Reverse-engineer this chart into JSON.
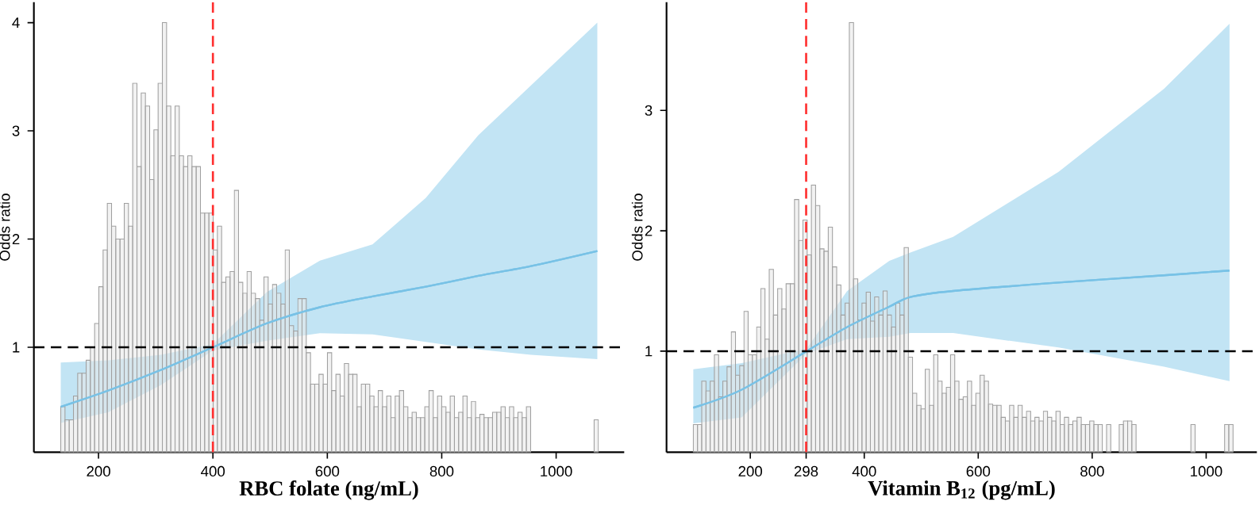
{
  "chart_data": [
    {
      "type": "histogram",
      "xlabel": "RBC folate (ng/mL)",
      "ylabel": "Odds ratio",
      "xlim": [
        87,
        1119
      ],
      "ylim": [
        0.03,
        4.19
      ],
      "xticks": [
        200,
        400,
        600,
        800,
        1000
      ],
      "yticks": [
        1,
        2,
        3,
        4
      ],
      "series": [
        {
          "type": "histogram",
          "color": "#a0a0a0",
          "bins": [
            134,
            141.4,
            148.8,
            156.2,
            163.6,
            171,
            178.4,
            185.8,
            193.2,
            200.6,
            208,
            215.4,
            222.8,
            230.2,
            237.6,
            245,
            252.4,
            259.8,
            267.2,
            274.6,
            282,
            289.4,
            296.8,
            304.2,
            311.6,
            319,
            326.4,
            333.8,
            341.2,
            348.6,
            356,
            363.4,
            370.8,
            378.2,
            385.6,
            393,
            400.4,
            407.8,
            415.2,
            422.6,
            430,
            437.4,
            444.8,
            452.2,
            459.6,
            467,
            474.4,
            481.8,
            489.2,
            496.6,
            504,
            511.4,
            518.8,
            526.2,
            533.6,
            541,
            548.4,
            555.8,
            563.2,
            570.6,
            578,
            585.4,
            592.8,
            600.2,
            607.6,
            615,
            622.4,
            629.8,
            637.2,
            644.6,
            652,
            659.4,
            666.8,
            674.2,
            681.6,
            689,
            696.4,
            703.8,
            711.2,
            718.6,
            726,
            733.4,
            740.8,
            748.2,
            755.6,
            763,
            770.4,
            777.8,
            785.2,
            792.6,
            800,
            807.4,
            814.8,
            822.2,
            829.6,
            837,
            844.4,
            851.8,
            859.2,
            866.6,
            874,
            881.4,
            888.8,
            896.2,
            903.6,
            911,
            918.4,
            925.8,
            933.2,
            940.6,
            948,
            955.4,
            962.8,
            970.2,
            977.6,
            985,
            992.4,
            999.8,
            1007.2,
            1014.6,
            1022,
            1029.4,
            1036.8,
            1044.2,
            1051.6,
            1059,
            1066.4,
            1073.8
          ],
          "values": [
            0.45,
            0.33,
            0.33,
            0.55,
            0.76,
            0.76,
            0.88,
            1.0,
            1.22,
            1.56,
            1.9,
            2.33,
            2.12,
            2.0,
            2.0,
            2.33,
            2.12,
            3.44,
            2.67,
            3.35,
            3.23,
            2.55,
            3.01,
            3.44,
            4.0,
            3.23,
            2.77,
            3.23,
            2.77,
            2.67,
            2.77,
            2.67,
            2.67,
            2.24,
            2.24,
            2.24,
            1.9,
            2.12,
            1.6,
            1.65,
            1.7,
            2.45,
            1.6,
            1.5,
            1.7,
            1.5,
            1.45,
            1.25,
            1.65,
            1.4,
            1.58,
            1.5,
            1.4,
            1.9,
            1.2,
            1.15,
            1.45,
            1.45,
            0.95,
            0.66,
            0.66,
            0.75,
            0.66,
            0.95,
            0.6,
            0.75,
            0.55,
            0.85,
            0.75,
            0.75,
            0.45,
            0.66,
            0.66,
            0.55,
            0.45,
            0.6,
            0.45,
            0.55,
            0.35,
            0.55,
            0.6,
            0.45,
            0.35,
            0.4,
            0.35,
            0.35,
            0.45,
            0.6,
            0.35,
            0.55,
            0.45,
            0.4,
            0.55,
            0.35,
            0.4,
            0.55,
            0.35,
            0.5,
            0.35,
            0.38,
            0.35,
            0.35,
            0.4,
            0.4,
            0.45,
            0.35,
            0.45,
            0.35,
            0.4,
            0.35,
            0.45,
            null,
            null,
            null,
            null,
            null,
            null,
            null,
            null,
            null,
            null,
            null,
            null,
            null,
            null,
            null,
            0.33
          ]
        },
        {
          "type": "line",
          "color": "#78c2e6",
          "x": [
            134,
            217,
            309,
            400,
            494,
            587,
            679,
            772,
            864,
            956,
            1072
          ],
          "values": [
            0.45,
            0.6,
            0.79,
            1.0,
            1.22,
            1.37,
            1.47,
            1.56,
            1.66,
            1.75,
            1.89
          ],
          "lower": [
            0.3,
            0.4,
            0.65,
            0.97,
            1.06,
            1.13,
            1.12,
            1.05,
            0.98,
            0.93,
            0.89
          ],
          "upper": [
            0.86,
            0.88,
            0.93,
            1.03,
            1.51,
            1.8,
            1.95,
            2.38,
            2.96,
            3.42,
            4.0
          ]
        }
      ],
      "ref_lines": [
        {
          "axis": "x",
          "value": 400,
          "color": "#ff3030",
          "line_style": "dashed"
        },
        {
          "axis": "y",
          "value": 1,
          "color": "#000000",
          "line_style": "dashed"
        }
      ]
    },
    {
      "type": "histogram",
      "xlabel": "Vitamin B$_{12}$ (pg/mL)",
      "ylabel": "Odds ratio",
      "xlim": [
        53,
        1089
      ],
      "ylim": [
        0.16,
        3.9
      ],
      "xticks": [
        200,
        298,
        400,
        600,
        800,
        1000
      ],
      "yticks": [
        1,
        2,
        3
      ],
      "series": [
        {
          "type": "histogram",
          "color": "#a0a0a0",
          "bins": [
            100,
            107.4,
            114.8,
            122.2,
            129.6,
            137,
            144.4,
            151.8,
            159.2,
            166.6,
            174,
            181.4,
            188.8,
            196.2,
            203.6,
            211,
            218.4,
            225.8,
            233.2,
            240.6,
            248,
            255.4,
            262.8,
            270.2,
            277.6,
            285,
            292.4,
            299.8,
            307.2,
            314.6,
            322,
            329.4,
            336.8,
            344.2,
            351.6,
            359,
            366.4,
            373.8,
            381.2,
            388.6,
            396,
            403.4,
            410.8,
            418.2,
            425.6,
            433,
            440.4,
            447.8,
            455.2,
            462.6,
            470,
            477.4,
            484.8,
            492.2,
            499.6,
            507,
            514.4,
            521.8,
            529.2,
            536.6,
            544,
            551.4,
            558.8,
            566.2,
            573.6,
            581,
            588.4,
            595.8,
            603.2,
            610.6,
            618,
            625.4,
            632.8,
            640.2,
            647.6,
            655,
            662.4,
            669.8,
            677.2,
            684.6,
            692,
            699.4,
            706.8,
            714.2,
            721.6,
            729,
            736.4,
            743.8,
            751.2,
            758.6,
            766,
            773.4,
            780.8,
            788.2,
            795.6,
            803,
            810.4,
            817.8,
            825.2,
            832.6,
            840,
            847.4,
            854.8,
            862.2,
            869.6,
            877,
            884.4,
            891.8,
            899.2,
            906.6,
            914,
            921.4,
            928.8,
            936.2,
            943.6,
            951,
            958.4,
            965.8,
            973.2,
            980.6,
            988,
            995.4,
            1002.8,
            1010.2,
            1017.6,
            1025,
            1032.4,
            1039.8,
            1047.2
          ],
          "values": [
            0.39,
            0.39,
            0.75,
            0.67,
            0.75,
            0.97,
            0.62,
            0.75,
            0.87,
            1.16,
            0.8,
            0.88,
            1.33,
            0.97,
            0.97,
            1.2,
            1.52,
            1.1,
            1.68,
            1.3,
            1.52,
            1.35,
            1.56,
            1.56,
            2.26,
            1.92,
            2.09,
            1.8,
            2.38,
            2.21,
            1.85,
            1.83,
            2.03,
            1.7,
            1.55,
            1.3,
            1.4,
            3.73,
            1.6,
            1.26,
            1.4,
            1.49,
            1.25,
            1.45,
            1.3,
            1.5,
            1.3,
            1.2,
            1.4,
            1.3,
            1.86,
            0.95,
            0.65,
            0.55,
            0.52,
            0.85,
            0.55,
            0.97,
            0.75,
            0.65,
            0.7,
            0.97,
            0.75,
            0.6,
            0.62,
            0.75,
            0.55,
            0.65,
            0.8,
            0.75,
            0.56,
            0.55,
            0.55,
            0.45,
            0.42,
            0.55,
            0.45,
            0.55,
            0.45,
            0.5,
            0.42,
            0.45,
            0.42,
            0.5,
            0.45,
            0.42,
            0.5,
            0.39,
            0.45,
            0.39,
            0.42,
            0.45,
            0.39,
            0.39,
            0.42,
            0.39,
            0.39,
            null,
            0.39,
            null,
            null,
            0.39,
            0.42,
            0.42,
            0.39,
            null,
            null,
            null,
            null,
            null,
            null,
            null,
            null,
            null,
            null,
            null,
            null,
            null,
            0.39,
            null,
            null,
            null,
            null,
            null,
            null,
            null,
            0.39,
            0.39
          ]
        },
        {
          "type": "line",
          "color": "#78c2e6",
          "x": [
            100,
            185,
            299,
            370,
            444,
            481,
            556,
            741,
            926,
            1041
          ],
          "values": [
            0.53,
            0.68,
            1.0,
            1.2,
            1.37,
            1.45,
            1.5,
            1.57,
            1.63,
            1.67
          ],
          "lower": [
            0.4,
            0.45,
            0.98,
            1.1,
            1.12,
            1.15,
            1.15,
            1.03,
            0.87,
            0.75
          ],
          "upper": [
            0.85,
            0.9,
            1.02,
            1.5,
            1.75,
            1.82,
            1.95,
            2.49,
            3.18,
            3.72
          ]
        }
      ],
      "ref_lines": [
        {
          "axis": "x",
          "value": 298,
          "color": "#ff3030",
          "line_style": "dashed"
        },
        {
          "axis": "y",
          "value": 1,
          "color": "#000000",
          "line_style": "dashed"
        }
      ]
    }
  ]
}
